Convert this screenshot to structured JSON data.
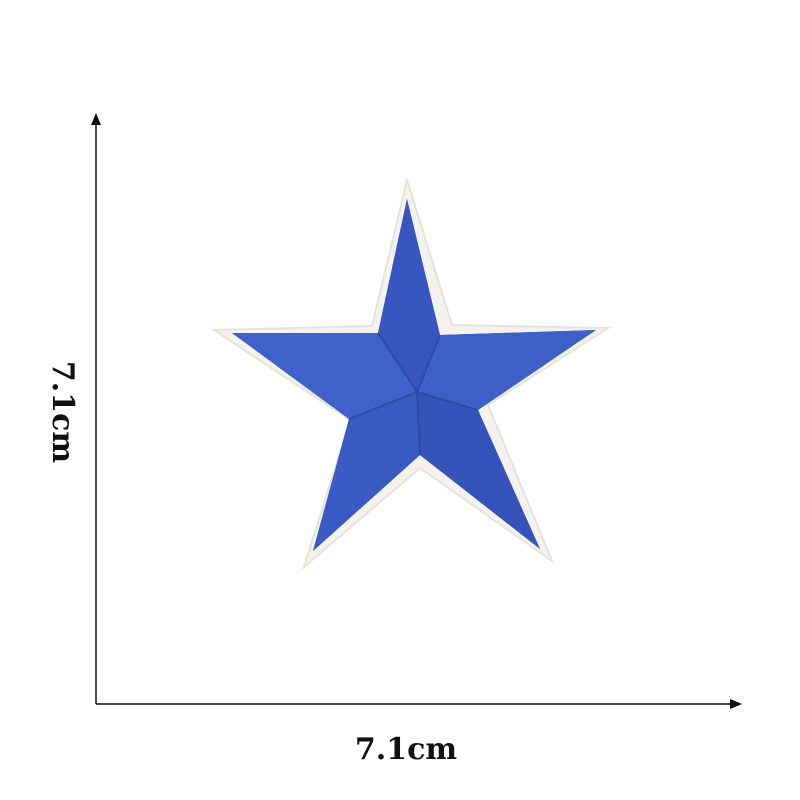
{
  "product": {
    "icon": "star-icon",
    "star_color": "#3a5cc4",
    "star_dark": "#2c469f",
    "border_color": "#f4f1ec"
  },
  "dimensions": {
    "width_label": "7.1cm",
    "height_label": "7.1cm"
  }
}
